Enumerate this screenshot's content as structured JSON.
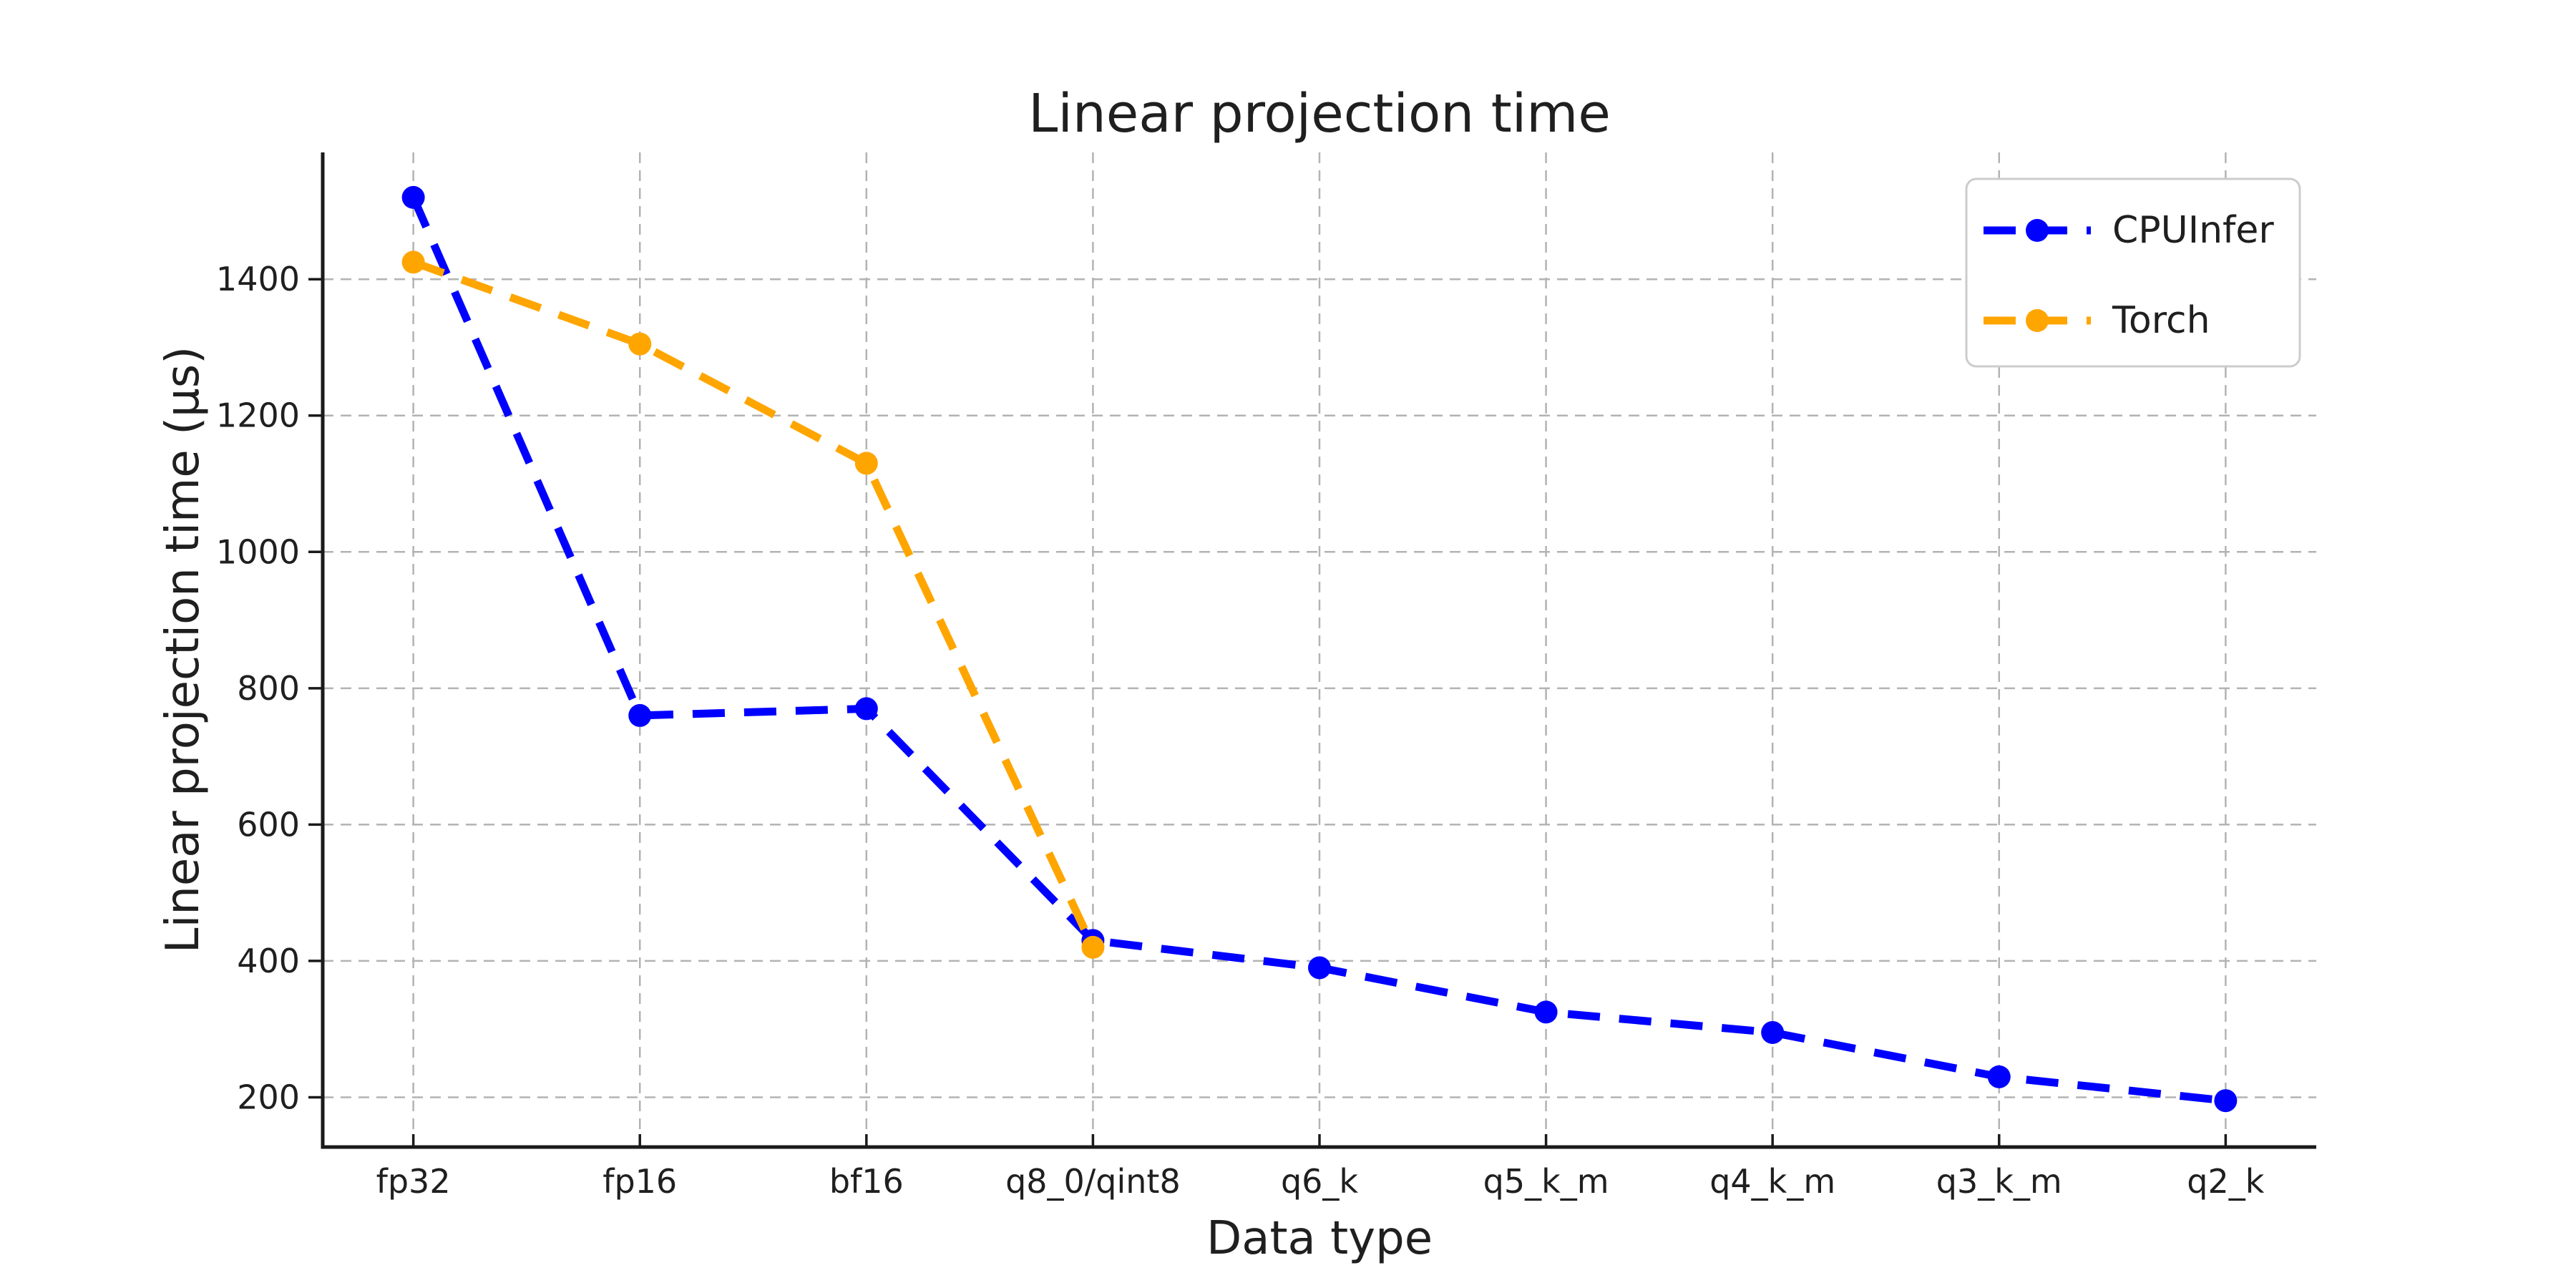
{
  "chart_data": {
    "type": "line",
    "title": "Linear projection time",
    "xlabel": "Data type",
    "ylabel": "Linear projection time (μs)",
    "categories": [
      "fp32",
      "fp16",
      "bf16",
      "q8_0/qint8",
      "q6_k",
      "q5_k_m",
      "q4_k_m",
      "q3_k_m",
      "q2_k"
    ],
    "yticks": [
      200,
      400,
      600,
      800,
      1000,
      1200,
      1400
    ],
    "ylim": [
      127,
      1586
    ],
    "grid": true,
    "grid_style": "dashed",
    "legend_position": "upper right",
    "line_style": "dashed",
    "marker": "circle",
    "series": [
      {
        "name": "CPUInfer",
        "color": "#0000ff",
        "values": [
          1520,
          760,
          770,
          430,
          390,
          325,
          295,
          230,
          195
        ]
      },
      {
        "name": "Torch",
        "color": "#ffa500",
        "values": [
          1425,
          1305,
          1130,
          420
        ]
      }
    ]
  },
  "style": {
    "grid_color": "#b3b3b3",
    "spine_color": "#1a1a1a",
    "tick_color": "#1a1a1a",
    "text_color": "#1f1f1f",
    "legend_border_color": "#cccccc",
    "background": "#ffffff"
  }
}
